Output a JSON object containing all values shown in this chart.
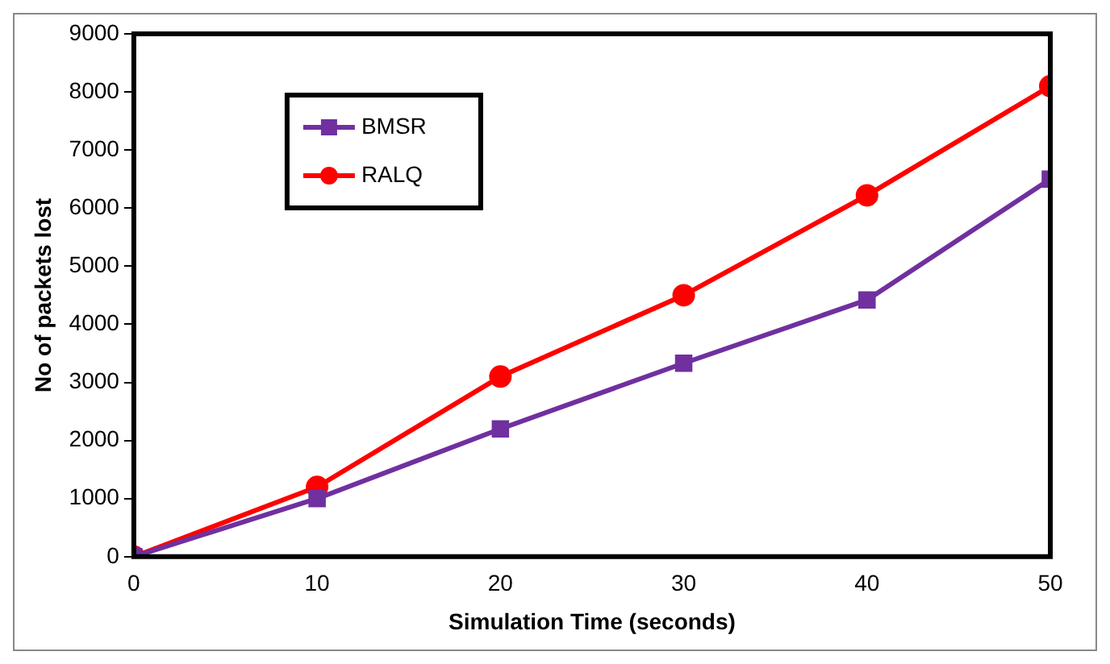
{
  "chart_data": {
    "type": "line",
    "xlabel": "Simulation Time (seconds)",
    "ylabel": "No of packets lost",
    "x": [
      0,
      10,
      20,
      30,
      40,
      50
    ],
    "series": [
      {
        "name": "BMSR",
        "color": "#7030a0",
        "marker": "square",
        "values": [
          0,
          1000,
          2200,
          3330,
          4420,
          6500
        ]
      },
      {
        "name": "RALQ",
        "color": "#ff0000",
        "marker": "circle",
        "values": [
          0,
          1200,
          3100,
          4500,
          6220,
          8100
        ]
      }
    ],
    "xlim": [
      0,
      50
    ],
    "xticks": [
      0,
      10,
      20,
      30,
      40,
      50
    ],
    "ylim": [
      0,
      9000
    ],
    "yticks": [
      0,
      1000,
      2000,
      3000,
      4000,
      5000,
      6000,
      7000,
      8000,
      9000
    ],
    "grid": false,
    "legend": "top left",
    "line_style": "solid"
  }
}
